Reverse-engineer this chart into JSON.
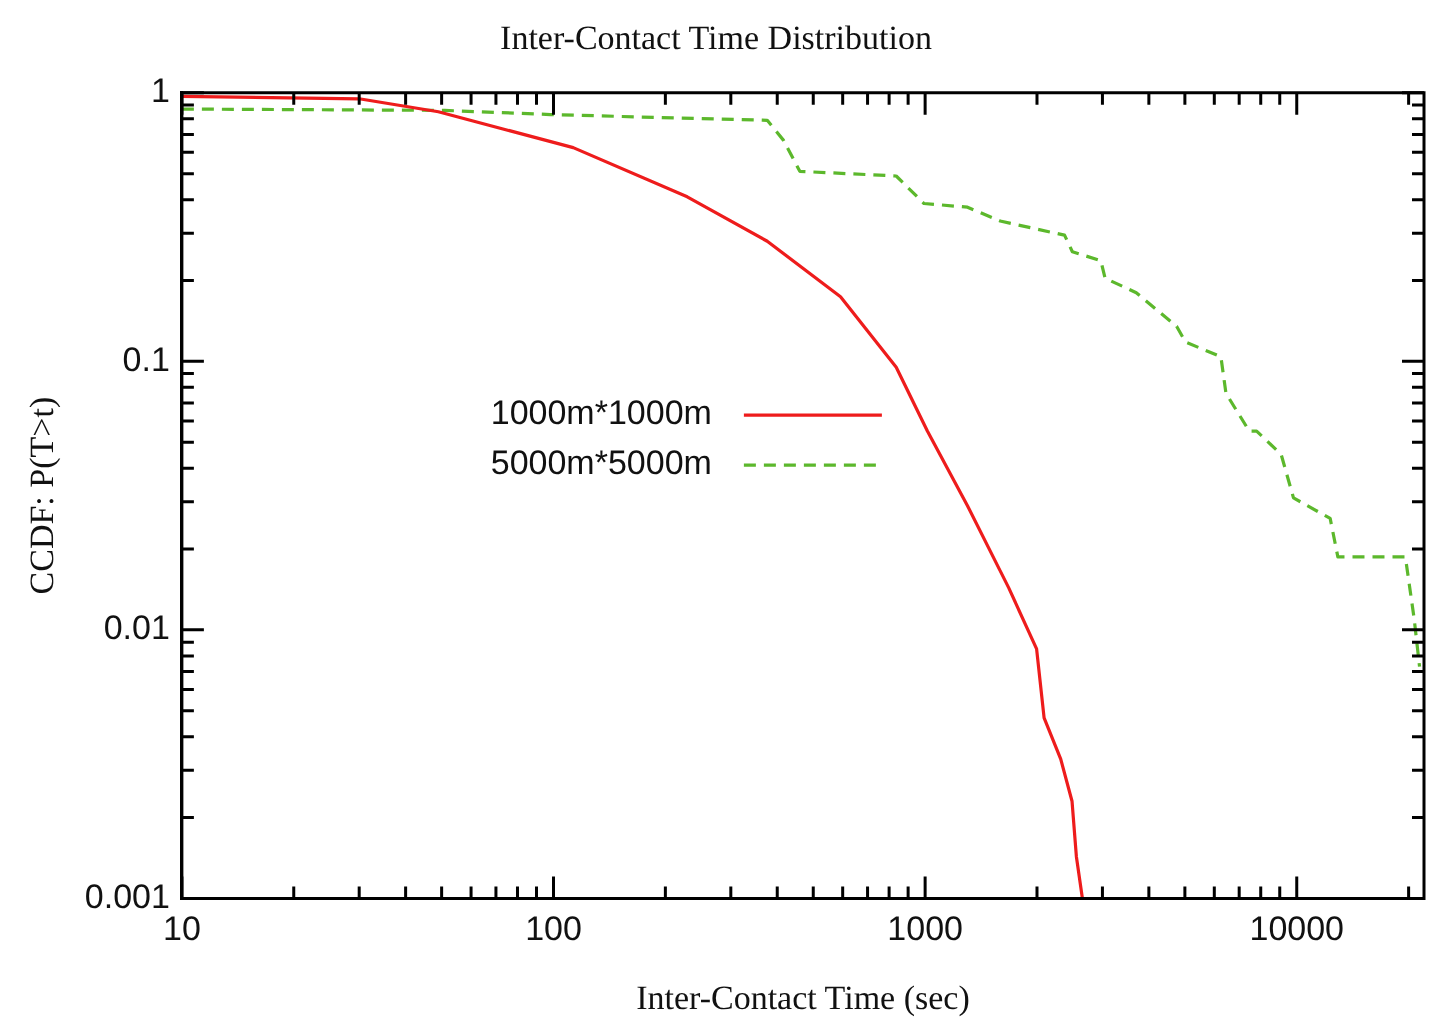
{
  "chart_data": {
    "type": "line",
    "title": "Inter-Contact Time Distribution",
    "xlabel": "Inter-Contact Time (sec)",
    "ylabel": "CCDF: P(T>t)",
    "log": "xy",
    "grid": false,
    "legend": "left",
    "marker": "none",
    "xlim": [
      10,
      22000
    ],
    "xticks": [
      10,
      {
        "value": 20,
        "label": null
      },
      {
        "value": 30,
        "label": null
      },
      {
        "value": 40,
        "label": null
      },
      {
        "value": 50,
        "label": null
      },
      {
        "value": 60,
        "label": null
      },
      {
        "value": 70,
        "label": null
      },
      {
        "value": 80,
        "label": null
      },
      {
        "value": 90,
        "label": null
      },
      100,
      {
        "value": 200,
        "label": null
      },
      {
        "value": 300,
        "label": null
      },
      {
        "value": 400,
        "label": null
      },
      {
        "value": 500,
        "label": null
      },
      {
        "value": 600,
        "label": null
      },
      {
        "value": 700,
        "label": null
      },
      {
        "value": 800,
        "label": null
      },
      {
        "value": 900,
        "label": null
      },
      1000,
      {
        "value": 2000,
        "label": null
      },
      {
        "value": 3000,
        "label": null
      },
      {
        "value": 4000,
        "label": null
      },
      {
        "value": 5000,
        "label": null
      },
      {
        "value": 6000,
        "label": null
      },
      {
        "value": 7000,
        "label": null
      },
      {
        "value": 8000,
        "label": null
      },
      {
        "value": 9000,
        "label": null
      },
      10000,
      {
        "value": 20000,
        "label": null
      }
    ],
    "ylim": [
      0.001,
      1
    ],
    "yticks": [
      0.001,
      {
        "value": 0.002,
        "label": null
      },
      {
        "value": 0.003,
        "label": null
      },
      {
        "value": 0.004,
        "label": null
      },
      {
        "value": 0.005,
        "label": null
      },
      {
        "value": 0.006,
        "label": null
      },
      {
        "value": 0.007,
        "label": null
      },
      {
        "value": 0.008,
        "label": null
      },
      {
        "value": 0.009,
        "label": null
      },
      0.01,
      {
        "value": 0.02,
        "label": null
      },
      {
        "value": 0.03,
        "label": null
      },
      {
        "value": 0.04,
        "label": null
      },
      {
        "value": 0.05,
        "label": null
      },
      {
        "value": 0.06,
        "label": null
      },
      {
        "value": 0.07,
        "label": null
      },
      {
        "value": 0.08,
        "label": null
      },
      {
        "value": 0.09,
        "label": null
      },
      0.1,
      {
        "value": 0.2,
        "label": null
      },
      {
        "value": 0.3,
        "label": null
      },
      {
        "value": 0.4,
        "label": null
      },
      {
        "value": 0.5,
        "label": null
      },
      {
        "value": 0.6,
        "label": null
      },
      {
        "value": 0.7,
        "label": null
      },
      {
        "value": 0.8,
        "label": null
      },
      {
        "value": 0.9,
        "label": null
      },
      1
    ],
    "series": [
      {
        "name": "1000m*1000m",
        "color": "#ee1c1c",
        "line_style": "solid",
        "x": [
          10,
          30,
          49,
          113,
          229,
          376,
          592,
          836,
          1014,
          1300,
          1680,
          1995,
          2090,
          2317,
          2485,
          2553,
          2650
        ],
        "values": [
          0.97,
          0.95,
          0.85,
          0.625,
          0.41,
          0.28,
          0.174,
          0.095,
          0.055,
          0.029,
          0.0143,
          0.0085,
          0.0047,
          0.0033,
          0.0023,
          0.00143,
          0.001
        ]
      },
      {
        "name": "5000m*5000m",
        "color": "#5cb82c",
        "line_style": "dashed",
        "x": [
          10,
          51,
          98,
          187,
          376,
          416,
          460,
          836,
          993,
          1300,
          1592,
          2372,
          2490,
          2970,
          3050,
          3700,
          4750,
          5020,
          6250,
          6450,
          7450,
          7800,
          9080,
          9800,
          12300,
          12900,
          19600,
          20700,
          21400
        ],
        "values": [
          0.87,
          0.86,
          0.83,
          0.81,
          0.79,
          0.665,
          0.51,
          0.49,
          0.387,
          0.375,
          0.333,
          0.295,
          0.256,
          0.237,
          0.204,
          0.18,
          0.135,
          0.118,
          0.104,
          0.076,
          0.055,
          0.055,
          0.045,
          0.031,
          0.026,
          0.0187,
          0.0187,
          0.011,
          0.0073
        ]
      }
    ]
  }
}
